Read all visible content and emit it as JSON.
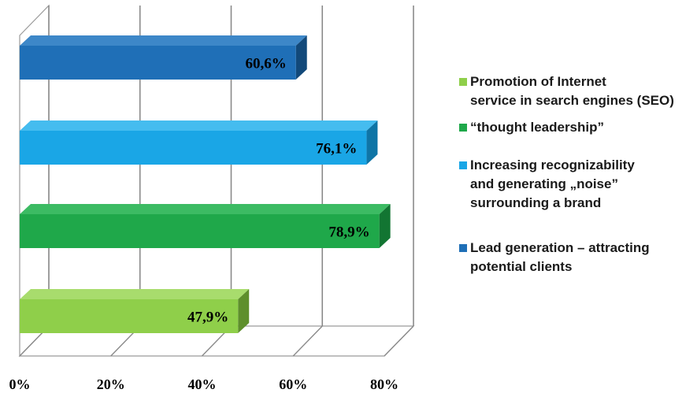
{
  "chart_data": {
    "type": "bar",
    "orientation": "horizontal",
    "three_d": true,
    "categories": [
      "Lead generation – attracting\npotential clients",
      "Increasing recognizability\nand generating „noise”\nsurrounding a brand",
      "“thought leadership”",
      "Promotion of Internet\nservice in search engines (SEO)"
    ],
    "values": [
      60.6,
      76.1,
      78.9,
      47.9
    ],
    "value_labels": [
      "60,6%",
      "76,1%",
      "78,9%",
      "47,9%"
    ],
    "colors": [
      "#1f6fb7",
      "#1aa6e6",
      "#1fa84a",
      "#8fcf4a"
    ],
    "side_colors": [
      "#12497a",
      "#0f75a6",
      "#127532",
      "#5e8f2c"
    ],
    "top_colors": [
      "#3d87c8",
      "#45bcef",
      "#3cbb63",
      "#a8dc6d"
    ],
    "xlim": [
      0,
      80
    ],
    "xticks": [
      0,
      20,
      40,
      60,
      80
    ],
    "xtick_labels": [
      "0%",
      "20%",
      "40%",
      "60%",
      "80%"
    ],
    "grid": true,
    "legend_position": "right",
    "legend": [
      {
        "label": "Promotion of Internet\nservice in search engines (SEO)",
        "color": "#8fcf4a"
      },
      {
        "label": "“thought leadership”",
        "color": "#1fa84a"
      },
      {
        "label": "Increasing recognizability\nand generating „noise”\nsurrounding a brand",
        "color": "#1aa6e6"
      },
      {
        "label": "Lead generation – attracting\npotential clients",
        "color": "#1f6fb7"
      }
    ]
  }
}
